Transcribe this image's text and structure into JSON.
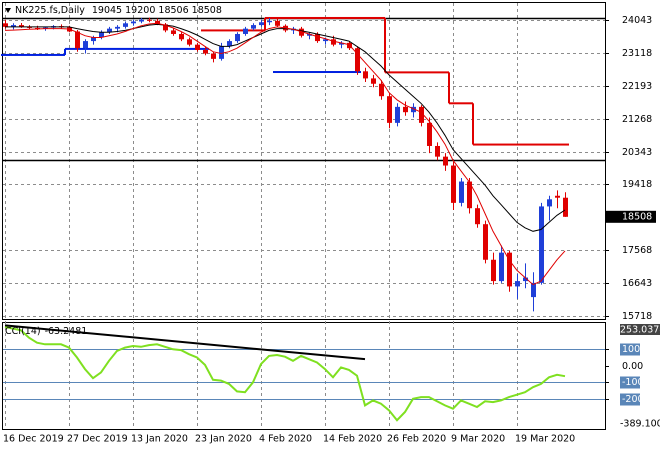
{
  "chart_data": [
    {
      "type": "candlestick",
      "title": "NK225.fs,Daily",
      "categories": [
        "16 Dec 2019",
        null,
        null,
        null,
        null,
        null,
        null,
        null,
        "27 Dec 2019",
        null,
        null,
        null,
        null,
        null,
        null,
        null,
        "13 Jan 2020",
        null,
        null,
        null,
        null,
        null,
        null,
        null,
        "23 Jan 2020",
        null,
        null,
        null,
        null,
        null,
        null,
        null,
        "4 Feb 2020",
        null,
        null,
        null,
        null,
        null,
        null,
        null,
        "14 Feb 2020",
        null,
        null,
        null,
        null,
        null,
        null,
        null,
        "26 Feb 2020",
        null,
        null,
        null,
        null,
        null,
        null,
        null,
        "9 Mar 2020",
        null,
        null,
        null,
        null,
        null,
        null,
        null,
        "19 Mar 2020",
        null,
        null,
        null,
        null,
        null,
        null
      ],
      "open": [
        23950,
        23850,
        23900,
        23860,
        23820,
        23800,
        23830,
        23870,
        23840,
        23720,
        23250,
        23450,
        23550,
        23700,
        23800,
        23850,
        23950,
        24000,
        24050,
        24020,
        23920,
        23750,
        23650,
        23500,
        23350,
        23200,
        23100,
        22950,
        23300,
        23450,
        23650,
        23800,
        23900,
        23980,
        24020,
        23880,
        23750,
        23800,
        23600,
        23650,
        23450,
        23500,
        23350,
        23400,
        23250,
        22600,
        22400,
        22250,
        21900,
        21150,
        21600,
        21450,
        21600,
        21150,
        20500,
        20200,
        19950,
        18900,
        19500,
        18750,
        18300,
        17300,
        16700,
        17500,
        16550,
        16700,
        16250,
        16650,
        18800,
        19100,
        19045
      ],
      "high": [
        24050,
        23950,
        23960,
        23900,
        23880,
        23860,
        23900,
        23920,
        23880,
        23760,
        23500,
        23600,
        23750,
        23850,
        23900,
        24000,
        24050,
        24100,
        24110,
        24080,
        23960,
        23820,
        23700,
        23550,
        23400,
        23300,
        23150,
        23400,
        23500,
        23700,
        23850,
        23950,
        24050,
        24100,
        24080,
        23920,
        23850,
        23850,
        23700,
        23700,
        23550,
        23600,
        23450,
        23450,
        23300,
        22700,
        22500,
        22350,
        22000,
        21700,
        21750,
        21700,
        21650,
        21300,
        20600,
        20300,
        20050,
        19600,
        19600,
        18850,
        18400,
        17500,
        17700,
        17550,
        16900,
        17200,
        16950,
        18900,
        19100,
        19250,
        19200
      ],
      "low": [
        23800,
        23780,
        23820,
        23780,
        23760,
        23740,
        23780,
        23800,
        23700,
        23150,
        23100,
        23350,
        23500,
        23650,
        23700,
        23800,
        23880,
        23950,
        23980,
        23900,
        23700,
        23600,
        23450,
        23300,
        23150,
        23050,
        22850,
        22900,
        23250,
        23400,
        23600,
        23750,
        23850,
        23900,
        23850,
        23700,
        23650,
        23550,
        23500,
        23400,
        23350,
        23300,
        23250,
        23200,
        22500,
        22300,
        22150,
        21800,
        21000,
        21050,
        21350,
        21300,
        21050,
        20300,
        20100,
        19800,
        18700,
        18800,
        18600,
        18200,
        17200,
        16600,
        16650,
        16400,
        16200,
        16500,
        15850,
        16600,
        18400,
        18750,
        18506
      ],
      "close": [
        23850,
        23900,
        23860,
        23820,
        23800,
        23830,
        23870,
        23840,
        23720,
        23250,
        23450,
        23550,
        23700,
        23800,
        23850,
        23950,
        24000,
        24050,
        24020,
        23920,
        23750,
        23650,
        23500,
        23350,
        23200,
        23100,
        22950,
        23300,
        23450,
        23650,
        23800,
        23900,
        23980,
        24020,
        23880,
        23750,
        23800,
        23600,
        23650,
        23450,
        23500,
        23350,
        23400,
        23250,
        22600,
        22400,
        22250,
        21900,
        21150,
        21600,
        21450,
        21600,
        21150,
        20500,
        20200,
        19950,
        18900,
        19500,
        18750,
        18300,
        17300,
        16700,
        17500,
        16550,
        16700,
        16800,
        16650,
        18800,
        19000,
        19045,
        18508
      ],
      "up_color": "#1f3fd8",
      "down_color": "#e00000",
      "lines": [
        {
          "color": "#000000",
          "values": [
            23850,
            23850,
            23850,
            23850,
            23850,
            23850,
            23850,
            23850,
            23850,
            23800,
            23760,
            23720,
            23700,
            23700,
            23720,
            23750,
            23800,
            23850,
            23900,
            23920,
            23900,
            23870,
            23800,
            23720,
            23620,
            23500,
            23380,
            23300,
            23300,
            23350,
            23450,
            23550,
            23650,
            23750,
            23800,
            23800,
            23780,
            23740,
            23700,
            23650,
            23600,
            23550,
            23500,
            23450,
            23300,
            23150,
            22950,
            22750,
            22500,
            22300,
            22100,
            21900,
            21700,
            21450,
            21150,
            20800,
            20400,
            20150,
            19900,
            19650,
            19400,
            19100,
            18850,
            18600,
            18350,
            18200,
            18100,
            18150,
            18350,
            18550,
            18700
          ]
        },
        {
          "color": "#e00000",
          "values": [
            23750,
            23760,
            23770,
            23780,
            23790,
            23800,
            23800,
            23800,
            23790,
            23700,
            23600,
            23550,
            23550,
            23600,
            23650,
            23720,
            23800,
            23880,
            23930,
            23950,
            23900,
            23820,
            23720,
            23600,
            23450,
            23300,
            23150,
            23100,
            23150,
            23250,
            23400,
            23550,
            23700,
            23800,
            23850,
            23820,
            23780,
            23720,
            23650,
            23580,
            23520,
            23450,
            23400,
            23350,
            23100,
            22850,
            22600,
            22350,
            22000,
            21800,
            21650,
            21550,
            21450,
            21200,
            20900,
            20550,
            20100,
            19800,
            19500,
            19100,
            18600,
            18100,
            17700,
            17300,
            17000,
            16800,
            16600,
            16700,
            17000,
            17300,
            17550
          ]
        }
      ],
      "steps": [
        {
          "color": "#0020e0",
          "values": [
            23060,
            23060,
            23060,
            23060,
            23060,
            23060,
            23060,
            23060,
            23230,
            23230,
            23230,
            23230,
            23230,
            23230,
            23230,
            23230,
            23230,
            23230,
            23230,
            23230,
            23230,
            23230,
            23230,
            23230,
            23230,
            23230,
            null,
            null,
            null,
            null,
            null,
            null,
            null,
            null,
            22580,
            22580,
            22580,
            22580,
            22580,
            22580,
            22580,
            22580,
            22580,
            22580,
            22580,
            null,
            null,
            null,
            null,
            null,
            null,
            null,
            null,
            null,
            null,
            null,
            null,
            null,
            null,
            null,
            null,
            null,
            null,
            null,
            null,
            null,
            null,
            null,
            null,
            null,
            null
          ]
        },
        {
          "color": "#e00000",
          "values": [
            null,
            null,
            null,
            null,
            null,
            null,
            null,
            null,
            null,
            null,
            null,
            null,
            null,
            null,
            null,
            null,
            null,
            null,
            null,
            null,
            null,
            null,
            null,
            null,
            null,
            23750,
            23750,
            23750,
            23750,
            23750,
            23750,
            23750,
            23750,
            24100,
            24100,
            24100,
            24100,
            24100,
            24100,
            24100,
            24100,
            24100,
            24100,
            24100,
            24100,
            24100,
            24100,
            24100,
            22570,
            22570,
            22570,
            22570,
            22570,
            22570,
            22570,
            22570,
            21700,
            21700,
            21700,
            20540,
            20540,
            20540,
            20540,
            20540,
            20540,
            20540,
            20540,
            20540,
            20540,
            20540,
            20540
          ]
        }
      ],
      "levels": [
        24100,
        20100
      ],
      "level_color": "#000000",
      "ylim": [
        15662,
        24521
      ],
      "yticks": [
        24043,
        23118,
        22193,
        21268,
        20343,
        19418,
        17568,
        16643,
        15718
      ],
      "grid": true
    },
    {
      "type": "line",
      "title": "CCI(14)",
      "values": [
        235,
        225,
        215,
        170,
        140,
        130,
        130,
        130,
        110,
        50,
        -20,
        -75,
        -40,
        30,
        90,
        110,
        120,
        115,
        125,
        130,
        115,
        100,
        95,
        70,
        50,
        5,
        -85,
        -90,
        -110,
        -155,
        -160,
        -100,
        10,
        60,
        65,
        55,
        30,
        60,
        40,
        20,
        -20,
        -70,
        -10,
        -25,
        -60,
        -240,
        -210,
        -230,
        -270,
        -330,
        -280,
        -200,
        -190,
        -190,
        -215,
        -240,
        -260,
        -210,
        -230,
        -250,
        -215,
        -220,
        -210,
        -190,
        -175,
        -160,
        -130,
        -110,
        -70,
        -55,
        -63.2481
      ],
      "color": "#7fe020",
      "levels": [
        100,
        -100,
        -200
      ],
      "level_color": "#5a86b8",
      "trendline": {
        "x": [
          0,
          45
        ],
        "y": [
          245,
          40
        ],
        "color": "#000000"
      },
      "ylim": [
        -389.1005,
        253.0378
      ],
      "yticks": [
        100,
        {
          "value": 0,
          "label": "0.00"
        },
        -100,
        -200
      ]
    }
  ]
}
